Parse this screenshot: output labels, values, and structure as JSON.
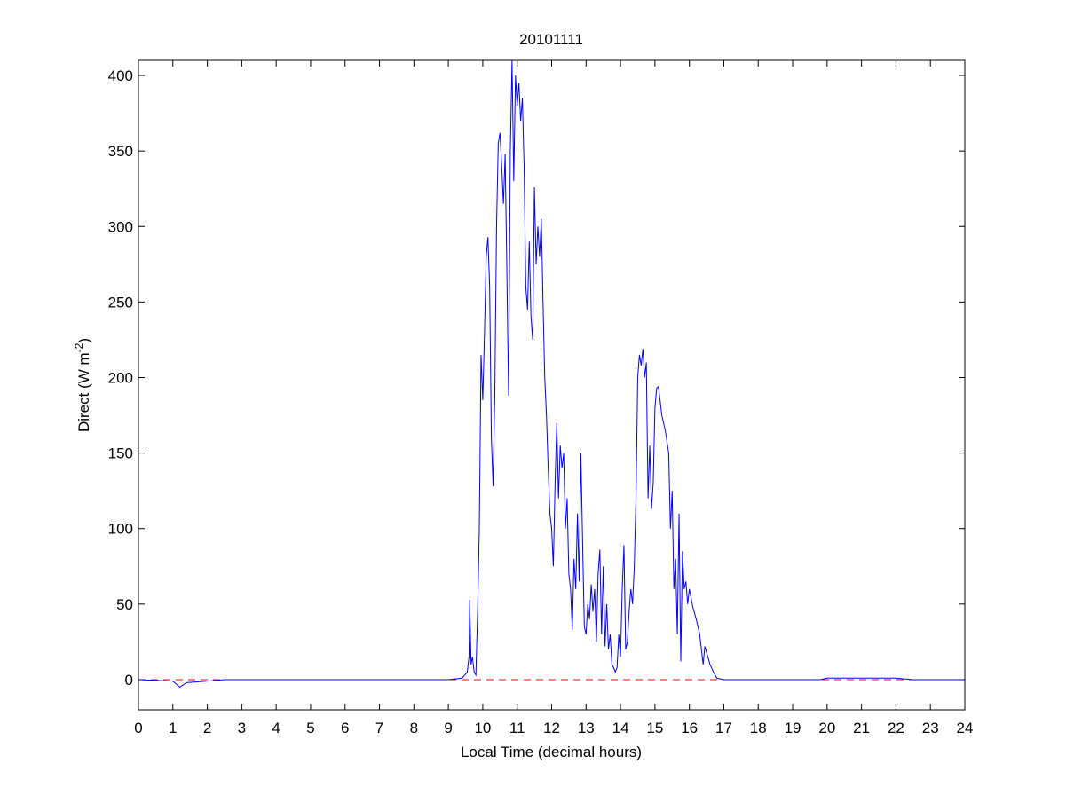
{
  "chart_data": {
    "type": "line",
    "title": "20101111",
    "xlabel": "Local Time (decimal hours)",
    "ylabel": [
      "Direct (W m",
      "-2",
      ")"
    ],
    "xlim": [
      0,
      24
    ],
    "xticks": [
      0,
      1,
      2,
      3,
      4,
      5,
      6,
      7,
      8,
      9,
      10,
      11,
      12,
      13,
      14,
      15,
      16,
      17,
      18,
      19,
      20,
      21,
      22,
      23,
      24
    ],
    "ylim": [
      -20,
      410
    ],
    "yticks": [
      0,
      50,
      100,
      150,
      200,
      250,
      300,
      350,
      400
    ],
    "grid": false,
    "hlines": [
      {
        "value": 0,
        "color": "#ff0000",
        "style": "dashed"
      }
    ],
    "series": [
      {
        "color": "#0000ff",
        "x": [
          0,
          1,
          1.2,
          1.4,
          2,
          2.5,
          3,
          9,
          9.4,
          9.55,
          9.6,
          9.62,
          9.66,
          9.7,
          9.75,
          9.8,
          9.85,
          9.9,
          9.95,
          10.0,
          10.05,
          10.1,
          10.15,
          10.2,
          10.25,
          10.3,
          10.35,
          10.4,
          10.45,
          10.5,
          10.55,
          10.6,
          10.65,
          10.7,
          10.75,
          10.8,
          10.85,
          10.9,
          10.95,
          11.0,
          11.05,
          11.1,
          11.15,
          11.2,
          11.25,
          11.3,
          11.35,
          11.4,
          11.45,
          11.5,
          11.55,
          11.6,
          11.65,
          11.7,
          11.75,
          11.8,
          11.85,
          11.9,
          11.95,
          12.0,
          12.05,
          12.1,
          12.15,
          12.2,
          12.25,
          12.3,
          12.35,
          12.4,
          12.45,
          12.5,
          12.55,
          12.6,
          12.65,
          12.7,
          12.75,
          12.8,
          12.85,
          12.9,
          12.95,
          13.0,
          13.05,
          13.1,
          13.15,
          13.2,
          13.25,
          13.3,
          13.35,
          13.4,
          13.45,
          13.5,
          13.55,
          13.6,
          13.65,
          13.7,
          13.75,
          13.8,
          13.85,
          13.9,
          13.95,
          14.0,
          14.05,
          14.1,
          14.15,
          14.2,
          14.25,
          14.3,
          14.35,
          14.4,
          14.45,
          14.5,
          14.55,
          14.6,
          14.65,
          14.7,
          14.75,
          14.8,
          14.85,
          14.9,
          14.95,
          15.0,
          15.05,
          15.1,
          15.15,
          15.2,
          15.3,
          15.4,
          15.45,
          15.5,
          15.55,
          15.6,
          15.65,
          15.7,
          15.75,
          15.8,
          15.85,
          15.9,
          15.95,
          16.0,
          16.1,
          16.2,
          16.3,
          16.35,
          16.4,
          16.45,
          16.5,
          16.6,
          16.7,
          16.8,
          17,
          19,
          19.8,
          20,
          21,
          22,
          22.5,
          23,
          23.5,
          24
        ],
        "values": [
          0,
          -1,
          -5,
          -2,
          -1,
          0,
          0,
          0,
          1,
          5,
          15,
          53,
          10,
          15,
          5,
          3,
          45,
          100,
          215,
          185,
          230,
          280,
          293,
          260,
          160,
          128,
          190,
          300,
          355,
          362,
          340,
          315,
          348,
          270,
          188,
          350,
          410,
          330,
          400,
          380,
          395,
          370,
          385,
          340,
          260,
          245,
          290,
          240,
          225,
          326,
          275,
          300,
          280,
          305,
          250,
          200,
          175,
          140,
          110,
          100,
          75,
          130,
          170,
          120,
          155,
          140,
          150,
          100,
          120,
          70,
          60,
          33,
          80,
          60,
          110,
          65,
          150,
          90,
          35,
          30,
          50,
          40,
          63,
          45,
          60,
          25,
          70,
          86,
          30,
          75,
          22,
          50,
          20,
          30,
          10,
          8,
          5,
          8,
          30,
          15,
          60,
          89,
          20,
          25,
          45,
          60,
          50,
          75,
          120,
          200,
          215,
          208,
          219,
          200,
          210,
          120,
          155,
          113,
          130,
          180,
          193,
          194,
          185,
          175,
          165,
          150,
          100,
          125,
          60,
          80,
          30,
          110,
          12,
          85,
          60,
          65,
          50,
          60,
          48,
          40,
          30,
          20,
          10,
          22,
          18,
          10,
          5,
          1,
          0,
          0,
          0,
          1,
          1,
          1,
          0,
          0,
          0,
          0
        ]
      }
    ]
  }
}
